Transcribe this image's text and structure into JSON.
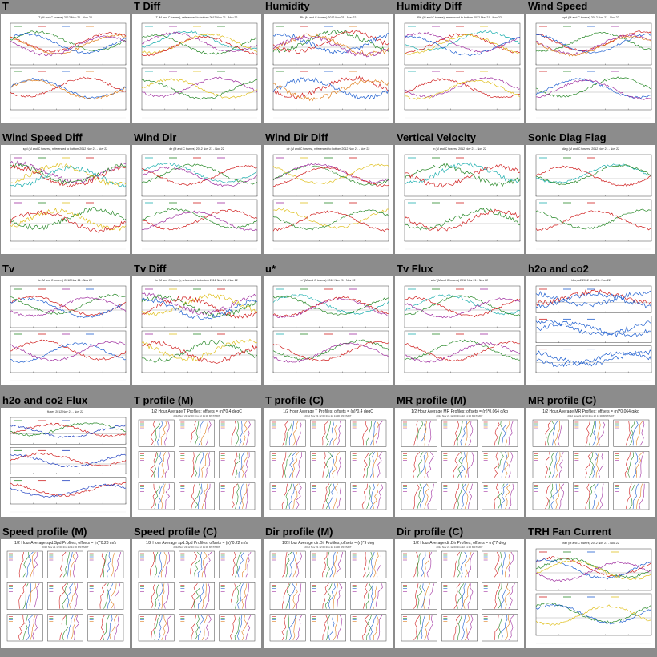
{
  "page": {
    "background": "#8c8c8c"
  },
  "thumbnails": [
    {
      "title": "T",
      "kind": "ts2",
      "header": "T (M and C towers) 2012 Nov 21 - Nov 22",
      "colors": [
        "#2a8a2a",
        "#d02020",
        "#2060d0",
        "#e08020",
        "#a030a0"
      ],
      "seed": 1
    },
    {
      "title": "T Diff",
      "kind": "ts2",
      "header": "T (M and C towers), referenced to bottom 2012 Nov 21 - Nov 22",
      "colors": [
        "#20b0b0",
        "#a030a0",
        "#e0c020",
        "#2a8a2a",
        "#d02020",
        "#2060d0"
      ],
      "seed": 2
    },
    {
      "title": "Humidity",
      "kind": "ts2",
      "header": "RH (M and C towers) 2012 Nov 21 - Nov 22",
      "colors": [
        "#2a8a2a",
        "#d02020",
        "#2060d0",
        "#e08020",
        "#a030a0"
      ],
      "seed": 3
    },
    {
      "title": "Humidity Diff",
      "kind": "ts2",
      "header": "RH (M and C towers), referenced to bottom 2012 Nov 21 - Nov 22",
      "colors": [
        "#20b0b0",
        "#a030a0",
        "#d02020",
        "#e0c020",
        "#2060d0"
      ],
      "seed": 4
    },
    {
      "title": "Wind Speed",
      "kind": "ts2",
      "header": "spd (M and C towers) 2012 Nov 21 - Nov 22",
      "colors": [
        "#d02020",
        "#2a8a2a",
        "#2060d0",
        "#a030a0",
        "#e08020"
      ],
      "seed": 5
    },
    {
      "title": "Wind Speed Diff",
      "kind": "ts2",
      "header": "spd (M and C towers), referenced to bottom 2012 Nov 21 - Nov 22",
      "colors": [
        "#a030a0",
        "#2a8a2a",
        "#e0c020",
        "#d02020",
        "#20b0b0"
      ],
      "seed": 6
    },
    {
      "title": "Wind Dir",
      "kind": "ts2",
      "header": "dir (M and C towers) 2012 Nov 21 - Nov 22",
      "colors": [
        "#20b0b0",
        "#2a8a2a",
        "#d02020",
        "#a030a0"
      ],
      "seed": 7
    },
    {
      "title": "Wind Dir Diff",
      "kind": "ts2",
      "header": "dir (M and C towers), referenced to bottom 2012 Nov 21 - Nov 22",
      "colors": [
        "#a030a0",
        "#e0c020",
        "#2a8a2a",
        "#d02020"
      ],
      "seed": 8
    },
    {
      "title": "Vertical Velocity",
      "kind": "ts2",
      "header": "w (M and C towers) 2012 Nov 21 - Nov 22",
      "colors": [
        "#20b0b0",
        "#2a8a2a",
        "#d02020"
      ],
      "seed": 9
    },
    {
      "title": "Sonic Diag Flag",
      "kind": "ts2",
      "header": "diag (M and C towers) 2012 Nov 21 - Nov 22",
      "colors": [
        "#20b0b0",
        "#2a8a2a",
        "#d02020"
      ],
      "seed": 10
    },
    {
      "title": "Tv",
      "kind": "ts2",
      "header": "tc (M and C towers) 2012 Nov 21 - Nov 22",
      "colors": [
        "#2a8a2a",
        "#d02020",
        "#a030a0",
        "#2060d0"
      ],
      "seed": 11
    },
    {
      "title": "Tv Diff",
      "kind": "ts2",
      "header": "tc (M and C towers), referenced to bottom 2012 Nov 21 - Nov 22",
      "colors": [
        "#a030a0",
        "#e0c020",
        "#2a8a2a",
        "#d02020",
        "#2060d0"
      ],
      "seed": 12
    },
    {
      "title": "u*",
      "kind": "ts2",
      "header": "u* (M and C towers) 2012 Nov 21 - Nov 22",
      "colors": [
        "#20b0b0",
        "#2a8a2a",
        "#d02020",
        "#a030a0"
      ],
      "seed": 13
    },
    {
      "title": "Tv Flux",
      "kind": "ts2",
      "header": "w'tc' (M and C towers) 2012 Nov 21 - Nov 22",
      "colors": [
        "#20b0b0",
        "#2a8a2a",
        "#d02020",
        "#a030a0"
      ],
      "seed": 14
    },
    {
      "title": "h2o and co2",
      "kind": "ts3",
      "header": "h2o,co2 2012 Nov 21 - Nov 22",
      "colors": [
        "#d02020",
        "#2060d0",
        "#2060d0"
      ],
      "seed": 15
    },
    {
      "title": "h2o and co2 Flux",
      "kind": "ts3",
      "header": "fluxes 2012 Nov 21 - Nov 22",
      "colors": [
        "#2a8a2a",
        "#d02020",
        "#2040c0"
      ],
      "seed": 16
    },
    {
      "title": "T profile (M)",
      "kind": "prof",
      "header": "1/2 Hour Average T Profiles; offsets = (n)*0.4 degC",
      "sub": "2012 Nov 21 12:00 thru 22 11:30 MST/MDT",
      "colors": [
        "#d02020",
        "#2a8a2a",
        "#2060d0",
        "#e08020",
        "#a030a0"
      ],
      "seed": 17
    },
    {
      "title": "T profile (C)",
      "kind": "prof",
      "header": "1/2 Hour Average T Profiles; offsets = (n)*0.4 degC",
      "sub": "2012 Nov 21 12:00 thru 22 11:30 MST/MDT",
      "colors": [
        "#d02020",
        "#2a8a2a",
        "#2060d0",
        "#e08020",
        "#a030a0"
      ],
      "seed": 18
    },
    {
      "title": "MR profile (M)",
      "kind": "prof",
      "header": "1/2 Hour Average MR Profiles; offsets = (n)*0.064 g/kg",
      "sub": "2012 Nov 21 12:00 thru 22 11:30 MST/MDT",
      "colors": [
        "#d02020",
        "#2a8a2a",
        "#2060d0",
        "#e08020",
        "#a030a0"
      ],
      "seed": 19
    },
    {
      "title": "MR profile (C)",
      "kind": "prof",
      "header": "1/2 Hour Average MR Profiles; offsets = (n)*0.064 g/kg",
      "sub": "2012 Nov 21 12:00 thru 22 11:30 MST/MDT",
      "colors": [
        "#d02020",
        "#2a8a2a",
        "#2060d0",
        "#e08020",
        "#a030a0"
      ],
      "seed": 20
    },
    {
      "title": "Speed profile (M)",
      "kind": "prof",
      "header": "1/2 Hour Average spd.Spd Profiles; offsets = (n)*0.28 m/s",
      "sub": "2012 Nov 21 12:00 thru 22 11:30 MST/MDT",
      "colors": [
        "#d02020",
        "#2a8a2a",
        "#2060d0",
        "#e08020",
        "#a030a0"
      ],
      "seed": 21
    },
    {
      "title": "Speed profile (C)",
      "kind": "prof",
      "header": "1/2 Hour Average spd.Spd Profiles; offsets = (n)*0.22 m/s",
      "sub": "2012 Nov 21 12:00 thru 22 11:30 MST/MDT",
      "colors": [
        "#d02020",
        "#2a8a2a",
        "#2060d0",
        "#e08020",
        "#a030a0"
      ],
      "seed": 22
    },
    {
      "title": "Dir profile (M)",
      "kind": "prof",
      "header": "1/2 Hour Average dir.Dir Profiles; offsets = (n)*9 deg",
      "sub": "2012 Nov 21 12:00 thru 22 11:30 MST/MDT",
      "colors": [
        "#d02020",
        "#2a8a2a",
        "#2060d0",
        "#e08020",
        "#a030a0"
      ],
      "seed": 23
    },
    {
      "title": "Dir profile (C)",
      "kind": "prof",
      "header": "1/2 Hour Average dir.Dir Profiles; offsets = (n)*7 deg",
      "sub": "2012 Nov 21 12:00 thru 22 11:30 MST/MDT",
      "colors": [
        "#d02020",
        "#2a8a2a",
        "#2060d0",
        "#e08020",
        "#a030a0"
      ],
      "seed": 24
    },
    {
      "title": "TRH Fan Current",
      "kind": "ts2",
      "header": "ifan (M and C towers) 2012 Nov 21 - Nov 22",
      "colors": [
        "#d02020",
        "#2a8a2a",
        "#2060d0",
        "#e0c020",
        "#a030a0"
      ],
      "seed": 25
    }
  ]
}
